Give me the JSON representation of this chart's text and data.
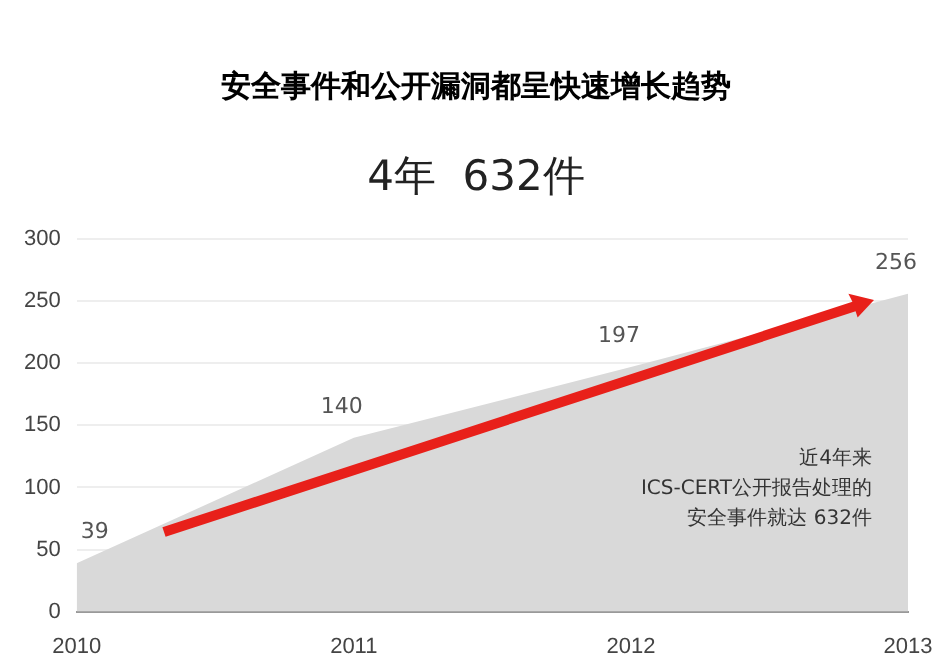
{
  "chart_data": {
    "type": "area",
    "title": "安全事件和公开漏洞都呈快速增长趋势",
    "subtitle": "4年  632件",
    "categories": [
      "2010",
      "2011",
      "2012",
      "2013"
    ],
    "values": [
      39,
      140,
      197,
      256
    ],
    "color": "#d9d9d9",
    "ylim": [
      0,
      300
    ],
    "yticks": [
      0,
      50,
      100,
      150,
      200,
      250,
      300
    ],
    "grid": "y",
    "data_labels": true,
    "annotations": [
      "近4年来",
      "ICS-CERT公开报告处理的",
      "安全事件就达 632件"
    ]
  }
}
